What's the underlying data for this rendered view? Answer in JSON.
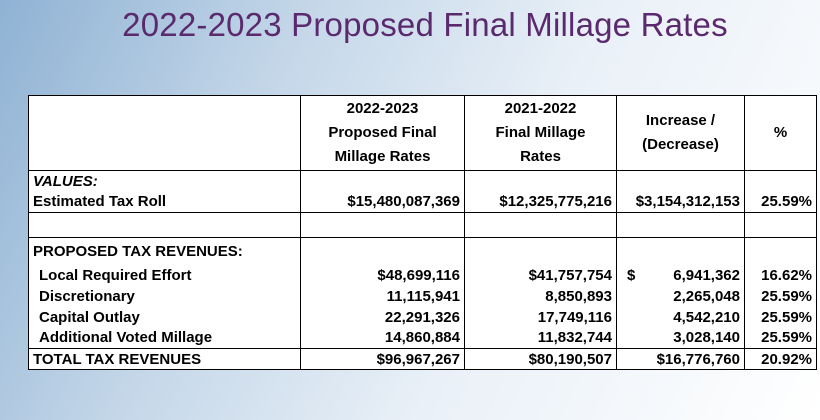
{
  "title": "2022-2023 Proposed Final Millage Rates",
  "table": {
    "headers": [
      "",
      "2022-2023\nProposed Final\nMillage Rates",
      "2021-2022\nFinal Millage\nRates",
      "Increase /\n(Decrease)",
      "%"
    ],
    "values_section": "VALUES:",
    "tax_roll": [
      "Estimated Tax Roll",
      "$15,480,087,369",
      "$12,325,775,216",
      "$3,154,312,153",
      "25.59%"
    ],
    "revenues_section": "PROPOSED TAX REVENUES:",
    "rows": [
      [
        "Local Required Effort",
        "$48,699,116",
        "$41,757,754",
        "6,941,362",
        "16.62%"
      ],
      [
        "Discretionary",
        "11,115,941",
        "8,850,893",
        "2,265,048",
        "25.59%"
      ],
      [
        "Capital Outlay",
        "22,291,326",
        "17,749,116",
        "4,542,210",
        "25.59%"
      ],
      [
        "Additional Voted Millage",
        "14,860,884",
        "11,832,744",
        "3,028,140",
        "25.59%"
      ]
    ],
    "first_row_increase_prefix": "$",
    "total": [
      "TOTAL TAX REVENUES",
      "$96,967,267",
      "$80,190,507",
      "$16,776,760",
      "20.92%"
    ]
  }
}
